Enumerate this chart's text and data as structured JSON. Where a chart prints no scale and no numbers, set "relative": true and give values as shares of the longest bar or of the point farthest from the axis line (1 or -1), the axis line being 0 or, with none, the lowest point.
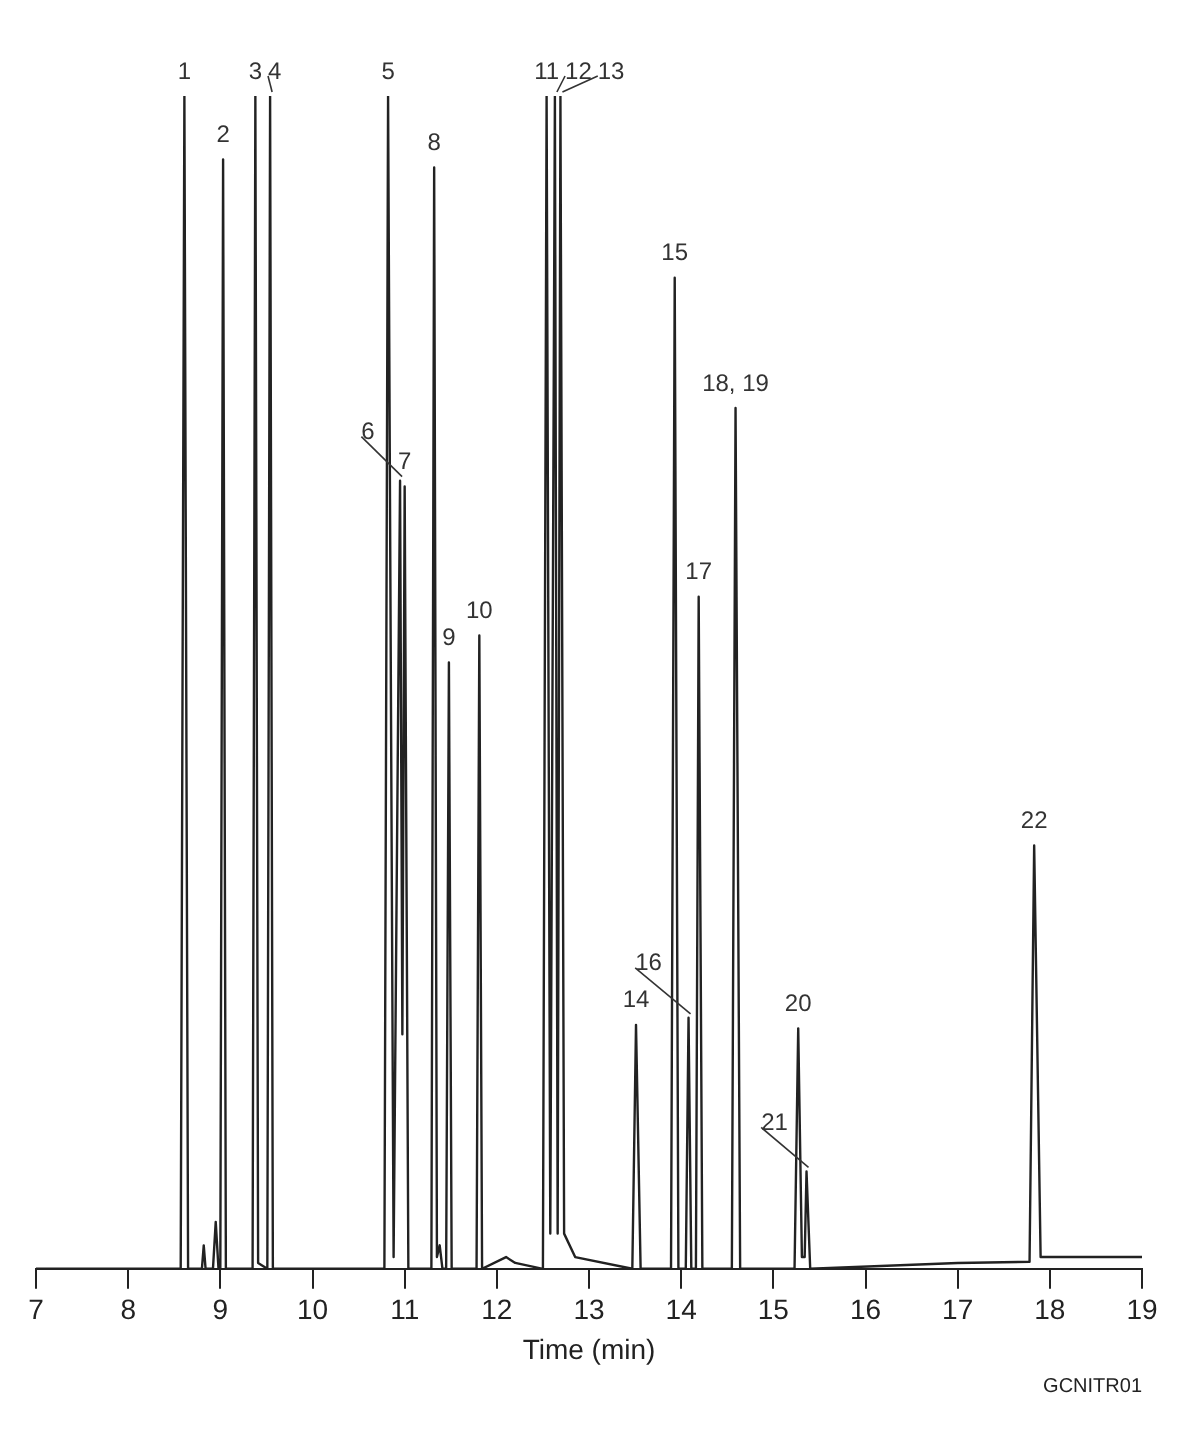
{
  "chart_data": {
    "type": "line",
    "relative": true,
    "xlabel": "Time (min)",
    "xlim": [
      7,
      19
    ],
    "xticks": [
      7,
      8,
      9,
      10,
      11,
      12,
      13,
      14,
      15,
      16,
      17,
      18,
      19
    ],
    "grid": false,
    "legend": false,
    "marker": "none",
    "line_style": "solid",
    "series": [
      {
        "color": "#222222",
        "x": [
          7.0,
          8.57,
          8.61,
          8.65,
          8.8,
          8.82,
          8.84,
          8.92,
          8.95,
          8.98,
          9.0,
          9.03,
          9.06,
          9.35,
          9.38,
          9.41,
          9.51,
          9.54,
          9.57,
          10.78,
          10.82,
          10.88,
          10.95,
          10.975,
          11.0,
          11.04,
          11.29,
          11.32,
          11.35,
          11.38,
          11.41,
          11.45,
          11.48,
          11.51,
          11.78,
          11.81,
          11.84,
          12.1,
          12.2,
          12.5,
          12.54,
          12.58,
          12.63,
          12.66,
          12.69,
          12.73,
          12.85,
          13.47,
          13.51,
          13.56,
          13.89,
          13.93,
          13.97,
          14.05,
          14.08,
          14.11,
          14.16,
          14.19,
          14.23,
          14.55,
          14.59,
          14.64,
          15.23,
          15.27,
          15.31,
          15.34,
          15.36,
          15.4,
          17.0,
          17.78,
          17.83,
          17.9,
          19.0
        ],
        "values": [
          0,
          0,
          1,
          0,
          0,
          0.02,
          0,
          0,
          0.04,
          0,
          0,
          0.946,
          0,
          0,
          1,
          0.005,
          0,
          1,
          0,
          0,
          1,
          0.01,
          0.672,
          0.2,
          0.667,
          0,
          0,
          0.939,
          0.01,
          0.02,
          0,
          0,
          0.517,
          0,
          0,
          0.54,
          0,
          0.01,
          0.005,
          0,
          1,
          0.03,
          1,
          0.03,
          1,
          0.03,
          0.01,
          0,
          0.208,
          0,
          0,
          0.845,
          0,
          0,
          0.214,
          0,
          0,
          0.573,
          0,
          0,
          0.734,
          0,
          0,
          0.205,
          0.01,
          0.01,
          0.083,
          0,
          0.005,
          0.006,
          0.361,
          0.01,
          0.01
        ]
      }
    ],
    "annotations": [
      {
        "text": "1",
        "x": 8.61,
        "y": 1
      },
      {
        "text": "2",
        "x": 9.03,
        "y": 0.946
      },
      {
        "text": "3",
        "x": 9.38,
        "y": 1
      },
      {
        "text": "4",
        "x": 9.54,
        "y": 1
      },
      {
        "text": "5",
        "x": 10.82,
        "y": 1
      },
      {
        "text": "6",
        "x": 10.95,
        "y": 0.672
      },
      {
        "text": "7",
        "x": 11.0,
        "y": 0.667
      },
      {
        "text": "8",
        "x": 11.32,
        "y": 0.939
      },
      {
        "text": "9",
        "x": 11.48,
        "y": 0.517
      },
      {
        "text": "10",
        "x": 11.81,
        "y": 0.54
      },
      {
        "text": "11",
        "x": 12.54,
        "y": 1
      },
      {
        "text": "12",
        "x": 12.63,
        "y": 1
      },
      {
        "text": "13",
        "x": 12.69,
        "y": 1
      },
      {
        "text": "14",
        "x": 13.51,
        "y": 0.208
      },
      {
        "text": "15",
        "x": 13.93,
        "y": 0.845
      },
      {
        "text": "16",
        "x": 14.08,
        "y": 0.214
      },
      {
        "text": "17",
        "x": 14.19,
        "y": 0.573
      },
      {
        "text": "18, 19",
        "x": 14.59,
        "y": 0.734
      },
      {
        "text": "20",
        "x": 15.27,
        "y": 0.205
      },
      {
        "text": "21",
        "x": 15.36,
        "y": 0.083
      },
      {
        "text": "22",
        "x": 17.83,
        "y": 0.361
      },
      "GCNITR01"
    ]
  }
}
